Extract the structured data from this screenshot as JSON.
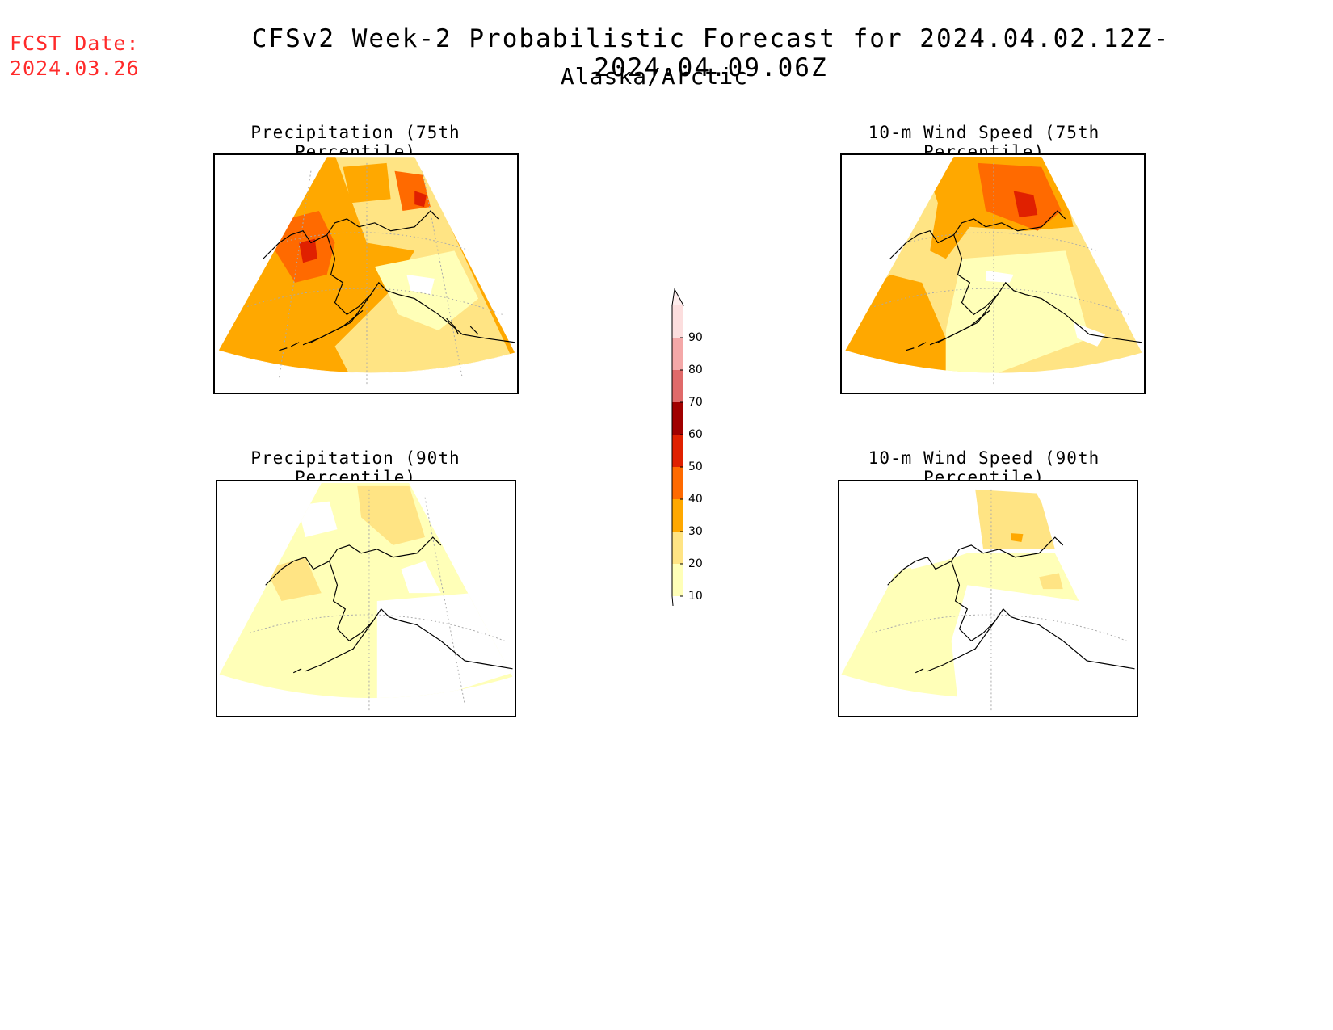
{
  "header": {
    "fcst_label": "FCST Date:",
    "fcst_date": "2024.03.26",
    "title": "CFSv2 Week-2 Probabilistic Forecast for 2024.04.02.12Z-2024.04.09.06Z",
    "subtitle": "Alaska/Arctic"
  },
  "panels": [
    {
      "title": "Precipitation (75th Percentile)"
    },
    {
      "title": "10-m Wind Speed (75th Percentile)"
    },
    {
      "title": "Precipitation (90th Percentile)"
    },
    {
      "title": "10-m Wind Speed (90th Percentile)"
    }
  ],
  "legend": {
    "levels": [
      "10",
      "20",
      "30",
      "40",
      "50",
      "60",
      "70",
      "80",
      "90"
    ],
    "colors": [
      "#ffffb8",
      "#ffe484",
      "#ffa800",
      "#ff6a00",
      "#e02000",
      "#a00000",
      "#e06a6a",
      "#f4a8a8",
      "#fcdede"
    ]
  }
}
